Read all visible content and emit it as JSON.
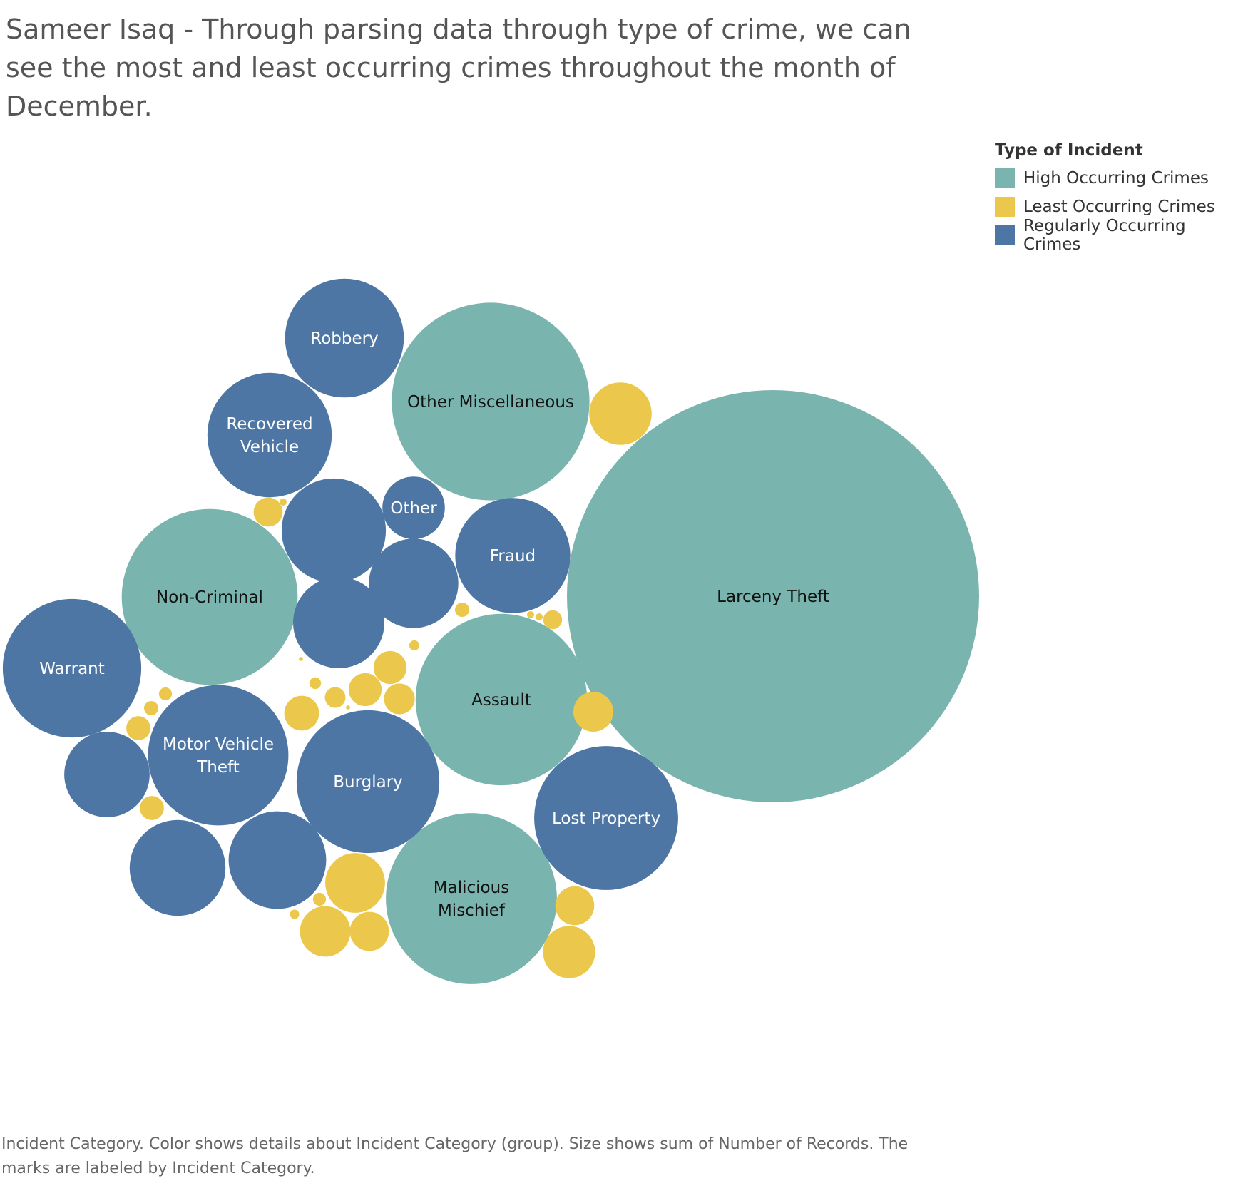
{
  "title": "Sameer Isaq - Through parsing data through type of crime, we can see the most and least occurring crimes throughout the month of December.",
  "legend": {
    "title": "Type of Incident",
    "items": [
      {
        "label": "High Occurring Crimes",
        "color": "#79B5AE"
      },
      {
        "label": "Least Occurring Crimes",
        "color": "#EBC84B"
      },
      {
        "label": "Regularly Occurring Crimes",
        "color": "#4D76A5"
      }
    ]
  },
  "caption": "Incident Category.  Color shows details about Incident Category (group).  Size shows sum of Number of Records.  The marks are labeled by Incident Category.",
  "chart_data": {
    "type": "bubble",
    "size_measure": "Number of Records",
    "color_measure": "Incident Category (group)",
    "label_measure": "Incident Category",
    "groups": {
      "high": "High Occurring Crimes",
      "least": "Least Occurring Crimes",
      "regular": "Regularly Occurring Crimes"
    },
    "colors": {
      "high": "#79B5AE",
      "least": "#EBC84B",
      "regular": "#4D76A5"
    },
    "bubbles": [
      {
        "label": "Larceny Theft",
        "group": "high",
        "size": 100
      },
      {
        "label": "Other Miscellaneous",
        "group": "high",
        "size": 23
      },
      {
        "label": "Non-Criminal",
        "group": "high",
        "size": 18.2
      },
      {
        "label": "Assault",
        "group": "high",
        "size": 17.3
      },
      {
        "label": "Malicious Mischief",
        "group": "high",
        "size": 17.2
      },
      {
        "label": "Robbery",
        "group": "regular",
        "size": 8.3
      },
      {
        "label": "Recovered Vehicle",
        "group": "regular",
        "size": 9.1
      },
      {
        "label": "Other",
        "group": "regular",
        "size": 2.3
      },
      {
        "label": "Fraud",
        "group": "regular",
        "size": 7.8
      },
      {
        "label": "Warrant",
        "group": "regular",
        "size": 11.3
      },
      {
        "label": "Motor Vehicle Theft",
        "group": "regular",
        "size": 11.6
      },
      {
        "label": "Burglary",
        "group": "regular",
        "size": 12.0
      },
      {
        "label": "Lost Property",
        "group": "regular",
        "size": 12.2
      },
      {
        "label": "",
        "group": "regular",
        "size": 6.4
      },
      {
        "label": "",
        "group": "regular",
        "size": 4.7
      },
      {
        "label": "",
        "group": "regular",
        "size": 4.9
      },
      {
        "label": "",
        "group": "regular",
        "size": 4.3
      },
      {
        "label": "",
        "group": "regular",
        "size": 5.4
      },
      {
        "label": "",
        "group": "regular",
        "size": 5.6
      },
      {
        "label": "",
        "group": "least",
        "size": 2.3
      },
      {
        "label": "",
        "group": "least",
        "size": 0.5
      },
      {
        "label": "",
        "group": "least",
        "size": 0.03
      },
      {
        "label": "",
        "group": "least",
        "size": 0.12
      },
      {
        "label": "",
        "group": "least",
        "size": 0.03
      },
      {
        "label": "",
        "group": "least",
        "size": 0.03
      },
      {
        "label": "",
        "group": "least",
        "size": 0.21
      },
      {
        "label": "",
        "group": "least",
        "size": 0.06
      },
      {
        "label": "",
        "group": "least",
        "size": 0.64
      },
      {
        "label": "",
        "group": "least",
        "size": 0.56
      },
      {
        "label": "",
        "group": "least",
        "size": 0.08
      },
      {
        "label": "",
        "group": "least",
        "size": 0.25
      },
      {
        "label": "",
        "group": "least",
        "size": 0.01
      },
      {
        "label": "",
        "group": "least",
        "size": 0.71
      },
      {
        "label": "",
        "group": "least",
        "size": 0.64
      },
      {
        "label": "",
        "group": "least",
        "size": 0.01
      },
      {
        "label": "",
        "group": "least",
        "size": 0.94
      },
      {
        "label": "",
        "group": "least",
        "size": 0.1
      },
      {
        "label": "",
        "group": "least",
        "size": 0.12
      },
      {
        "label": "",
        "group": "least",
        "size": 0.34
      },
      {
        "label": "",
        "group": "least",
        "size": 0.34
      },
      {
        "label": "",
        "group": "least",
        "size": 2.1
      },
      {
        "label": "",
        "group": "least",
        "size": 0.1
      },
      {
        "label": "",
        "group": "least",
        "size": 0.05
      },
      {
        "label": "",
        "group": "least",
        "size": 1.5
      },
      {
        "label": "",
        "group": "least",
        "size": 0.9
      },
      {
        "label": "",
        "group": "least",
        "size": 0.89
      },
      {
        "label": "",
        "group": "least",
        "size": 1.6
      }
    ]
  }
}
